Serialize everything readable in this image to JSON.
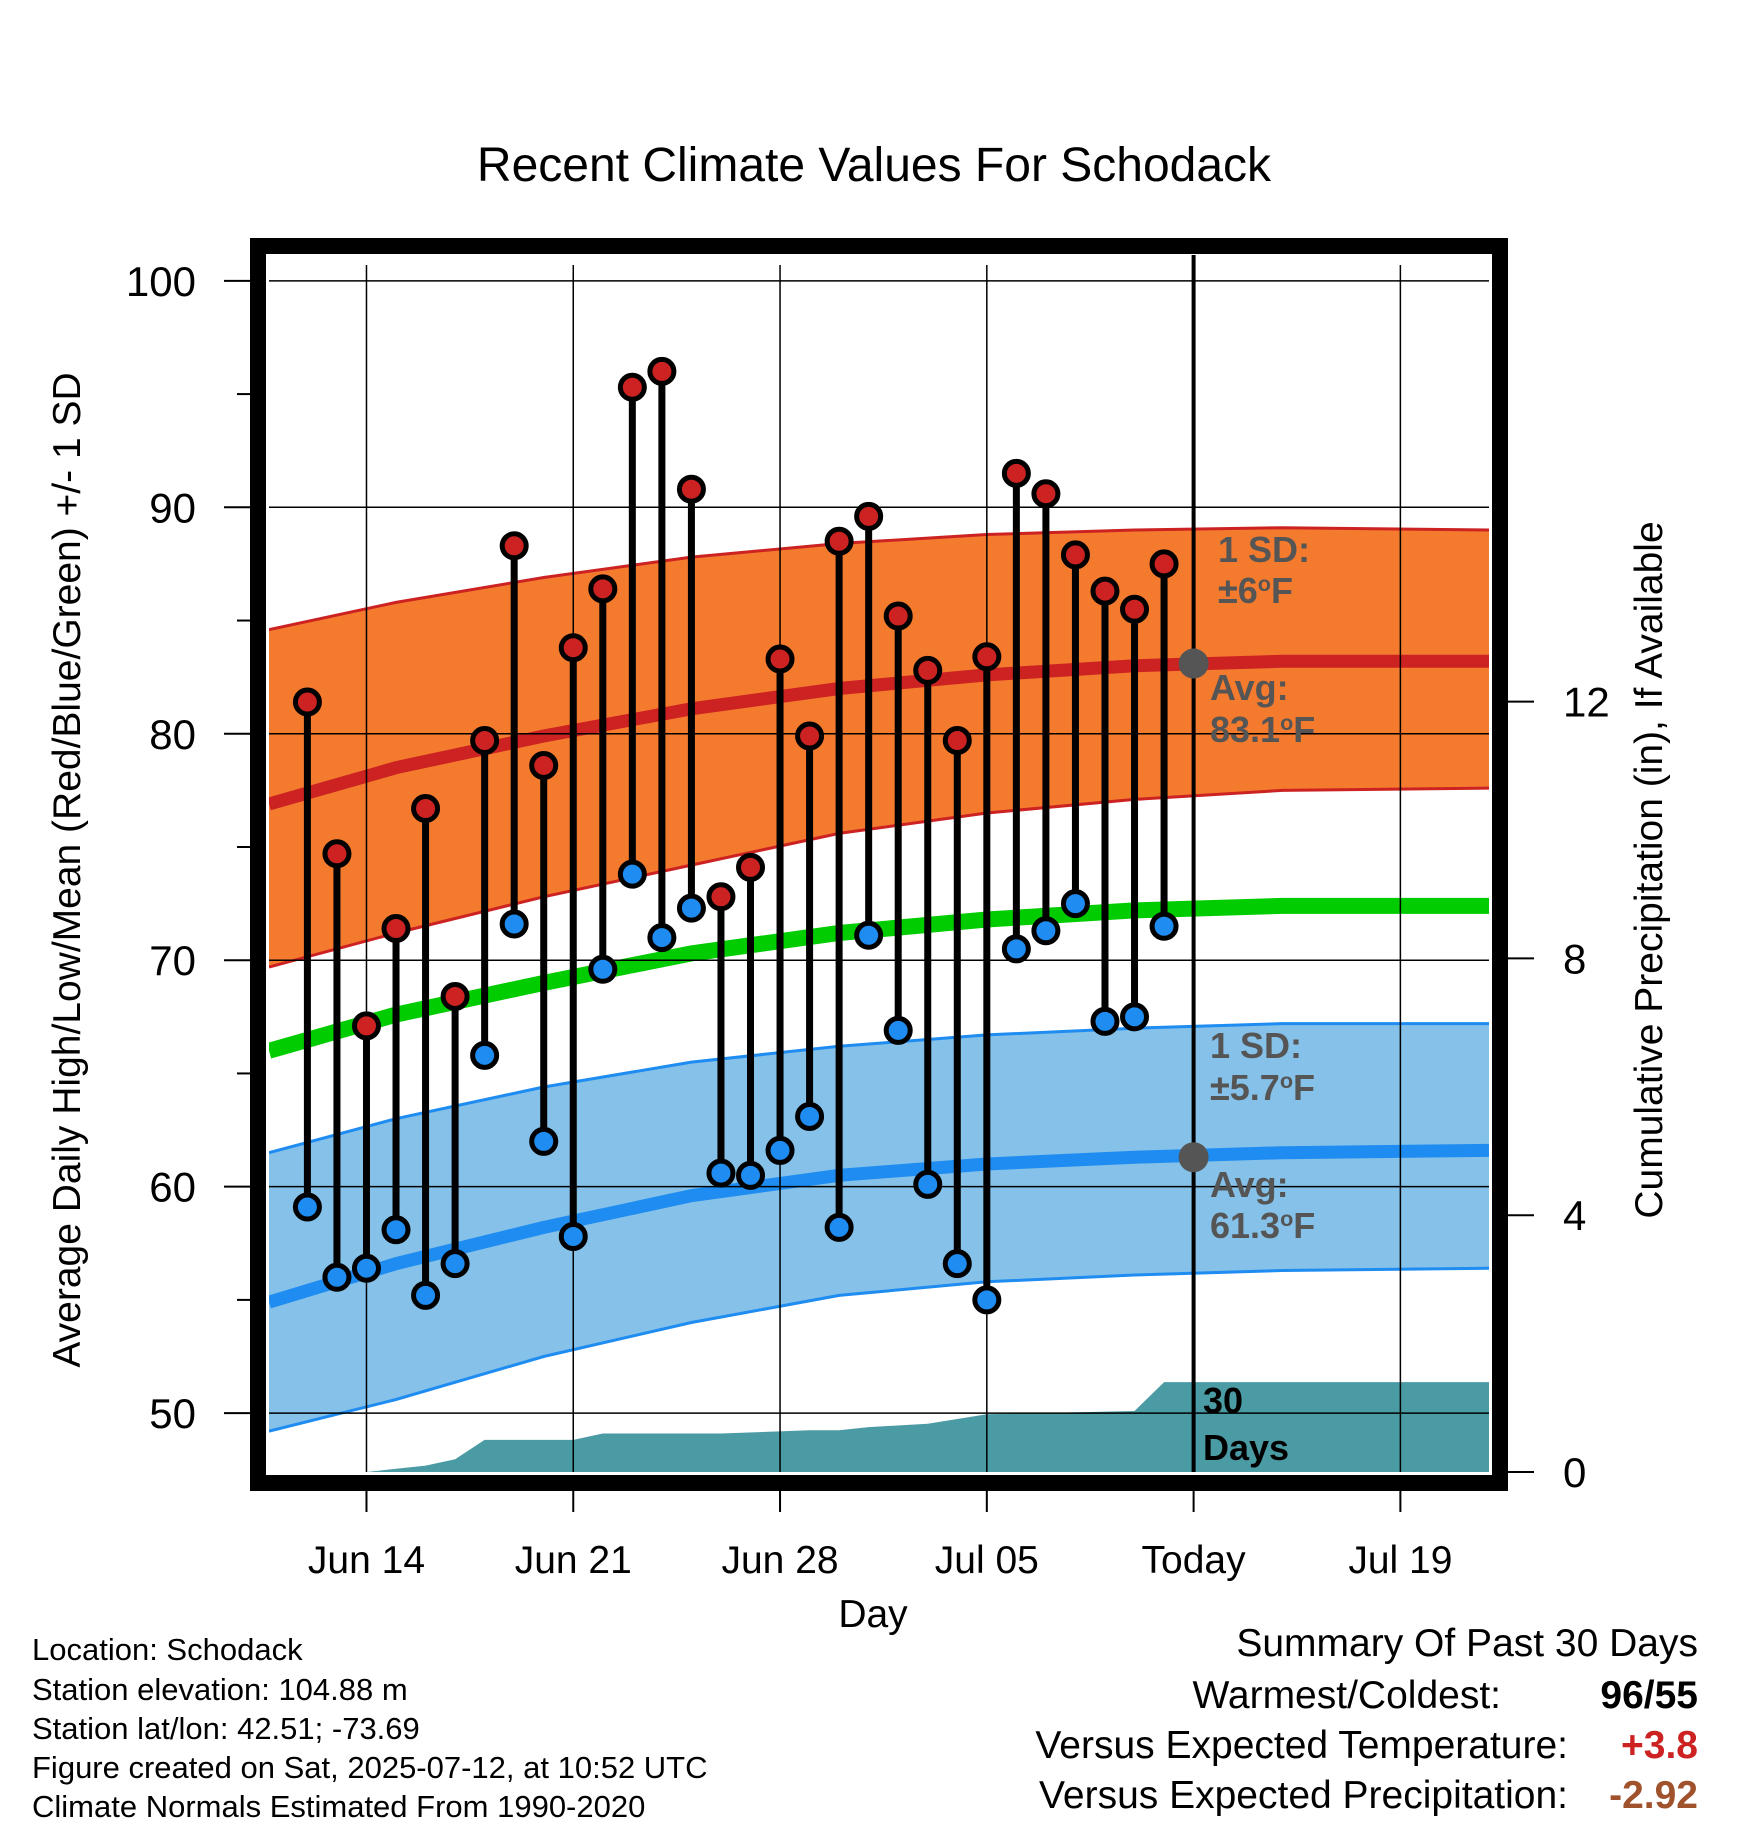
{
  "chart_data": {
    "type": "line",
    "title": "Recent Climate Values For Schodack",
    "xlabel": "Day",
    "ylabel": "Average Daily High/Low/Mean (Red/Blue/Green) +/- 1 SD",
    "y2label": "Cumulative Precipitation (in), If Available",
    "ylim": [
      47.4,
      100.7
    ],
    "y2lim": [
      0,
      18.8
    ],
    "yticks": [
      100,
      90,
      80,
      70,
      60,
      50
    ],
    "y2ticks": [
      12,
      8,
      4,
      0
    ],
    "xticks": [
      "Jun 14",
      "Jun 21",
      "Jun 28",
      "Jul 05",
      "Today",
      "Jul 19"
    ],
    "xlim": [
      "Jun 10.7",
      "Jul 22"
    ],
    "grid": true,
    "colors": {
      "high": "#cc2222",
      "low": "#1e8cf0",
      "mean": "#00cc00",
      "high_band": "#f47a2e",
      "low_band": "#85c1e8",
      "precip": "#4a9ba4",
      "avg_marker": "#555555"
    },
    "dates": [
      "Jun 12",
      "Jun 13",
      "Jun 14",
      "Jun 15",
      "Jun 16",
      "Jun 17",
      "Jun 18",
      "Jun 19",
      "Jun 20",
      "Jun 21",
      "Jun 22",
      "Jun 23",
      "Jun 24",
      "Jun 25",
      "Jun 26",
      "Jun 27",
      "Jun 28",
      "Jun 29",
      "Jun 30",
      "Jul 01",
      "Jul 02",
      "Jul 03",
      "Jul 04",
      "Jul 05",
      "Jul 06",
      "Jul 07",
      "Jul 08",
      "Jul 09",
      "Jul 10",
      "Jul 11"
    ],
    "series": [
      {
        "name": "High",
        "values": [
          81.4,
          74.7,
          67.1,
          71.4,
          76.7,
          68.4,
          79.7,
          88.3,
          78.6,
          83.8,
          86.4,
          95.3,
          96.0,
          90.8,
          72.8,
          74.1,
          83.3,
          79.9,
          88.5,
          89.6,
          85.2,
          82.8,
          79.7,
          83.4,
          91.5,
          90.6,
          87.9,
          86.3,
          85.5,
          87.5
        ]
      },
      {
        "name": "Low",
        "values": [
          59.1,
          56.0,
          56.4,
          58.1,
          55.2,
          56.6,
          65.8,
          71.6,
          62.0,
          57.8,
          69.6,
          73.8,
          71.0,
          72.3,
          60.6,
          60.5,
          61.6,
          63.1,
          58.2,
          71.1,
          66.9,
          60.1,
          56.6,
          55.0,
          70.5,
          71.3,
          72.5,
          67.3,
          67.5,
          71.5
        ]
      }
    ],
    "normals": {
      "x": [
        10.7,
        15,
        20,
        25,
        30,
        35,
        40,
        45,
        52
      ],
      "high_avg": [
        76.9,
        78.5,
        79.9,
        81.1,
        82.0,
        82.6,
        83.0,
        83.2,
        83.2
      ],
      "high_upper": [
        84.6,
        85.8,
        86.9,
        87.8,
        88.4,
        88.8,
        89.0,
        89.1,
        89.0
      ],
      "high_lower": [
        69.7,
        71.2,
        72.8,
        74.2,
        75.6,
        76.5,
        77.1,
        77.5,
        77.6
      ],
      "mean_avg": [
        66.0,
        67.6,
        69.0,
        70.3,
        71.2,
        71.8,
        72.2,
        72.4,
        72.4
      ],
      "low_avg": [
        54.9,
        56.6,
        58.2,
        59.6,
        60.5,
        61.0,
        61.3,
        61.5,
        61.6
      ],
      "low_upper": [
        61.5,
        63.0,
        64.4,
        65.5,
        66.2,
        66.7,
        67.0,
        67.2,
        67.2
      ],
      "low_lower": [
        49.2,
        50.6,
        52.5,
        54.0,
        55.2,
        55.8,
        56.1,
        56.3,
        56.4
      ]
    },
    "precip_cumulative": {
      "x": [
        10.7,
        14,
        16,
        17,
        18,
        21,
        22,
        26,
        29,
        30,
        31,
        33,
        35,
        40,
        41,
        52
      ],
      "values": [
        0,
        0,
        0.1,
        0.2,
        0.5,
        0.5,
        0.6,
        0.6,
        0.65,
        0.65,
        0.7,
        0.75,
        0.9,
        0.95,
        1.4,
        1.4
      ]
    },
    "today_avg_high": 83.1,
    "today_avg_low": 61.3,
    "annotations": {
      "high_sd_label": "1 SD:",
      "high_sd_value": "±6",
      "high_avg_label": "Avg:",
      "high_avg_value": "83.1",
      "low_sd_label": "1 SD:",
      "low_sd_value": "±5.7",
      "low_avg_label": "Avg:",
      "low_avg_value": "61.3",
      "degree": "o",
      "unit": "F",
      "days_label_1": "30",
      "days_label_2": "Days"
    }
  },
  "footer": {
    "location": "Location: Schodack",
    "elevation": "Station elevation: 104.88 m",
    "latlon": "Station lat/lon: 42.51; -73.69",
    "created": "Figure created on Sat, 2025-07-12, at 10:52 UTC",
    "normals": "Climate Normals Estimated From 1990-2020"
  },
  "summary": {
    "title": "Summary Of Past 30 Days",
    "warmest_label": "Warmest/Coldest:",
    "warmest": "96",
    "slash": "/",
    "coldest": "55",
    "temp_label": "Versus Expected Temperature:",
    "temp_value": "+3.8",
    "precip_label": "Versus Expected Precipitation:",
    "precip_value": "-2.92",
    "colors": {
      "temp": "#cc2222",
      "precip": "#a0522d",
      "warmest": "#000000"
    }
  }
}
